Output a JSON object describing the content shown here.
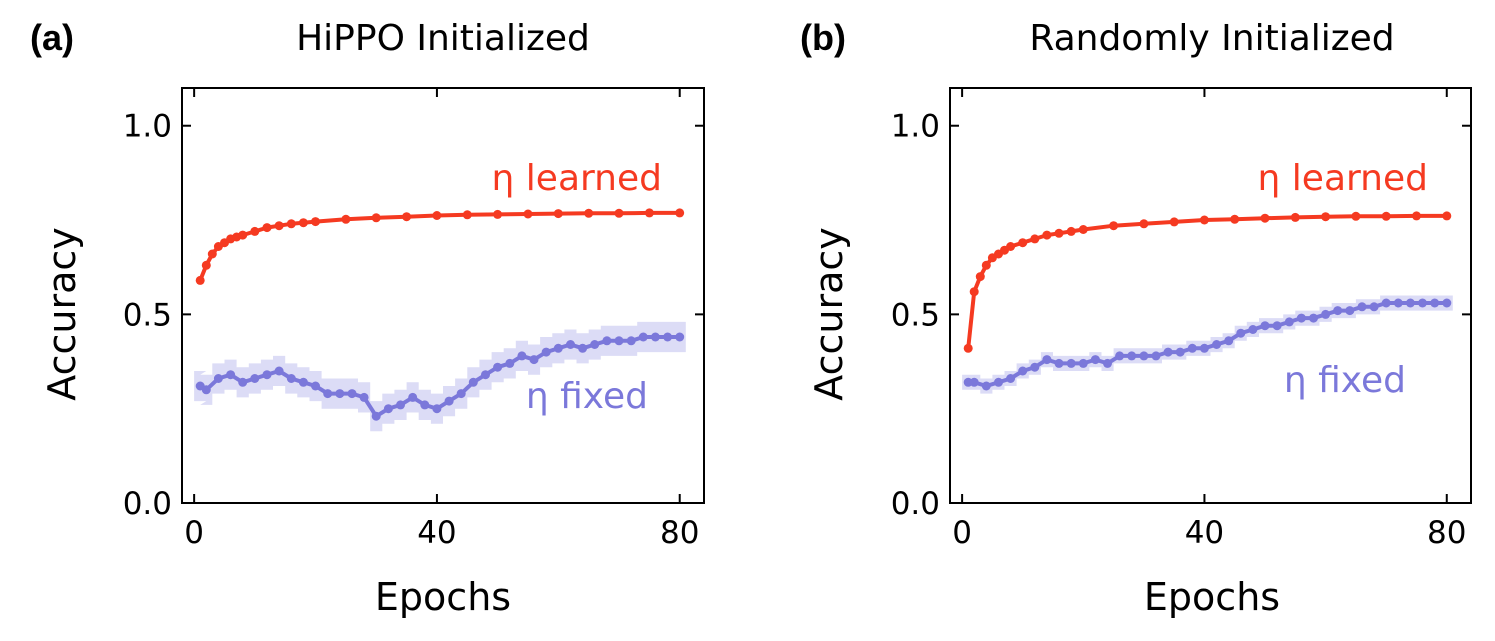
{
  "colors": {
    "learned": "#f53a21",
    "fixed": "#7b78da",
    "fixed_band": "#dcdcf6"
  },
  "chart_data": [
    {
      "type": "line",
      "panel_label": "(a)",
      "title": "HiPPO Initialized",
      "xlabel": "Epochs",
      "ylabel": "Accuracy",
      "xlim": [
        -2,
        84
      ],
      "ylim": [
        0,
        1.1
      ],
      "xticks": [
        "0",
        "40",
        "80"
      ],
      "yticks": [
        "0.0",
        "0.5",
        "1.0"
      ],
      "series": [
        {
          "name": "η learned",
          "x": [
            1,
            2,
            3,
            4,
            5,
            6,
            7,
            8,
            10,
            12,
            14,
            16,
            18,
            20,
            25,
            30,
            35,
            40,
            45,
            50,
            55,
            60,
            65,
            70,
            75,
            80
          ],
          "values": [
            0.59,
            0.63,
            0.66,
            0.68,
            0.69,
            0.7,
            0.705,
            0.71,
            0.72,
            0.73,
            0.735,
            0.74,
            0.743,
            0.746,
            0.752,
            0.756,
            0.759,
            0.762,
            0.764,
            0.765,
            0.766,
            0.767,
            0.768,
            0.768,
            0.769,
            0.769
          ]
        },
        {
          "name": "η fixed",
          "x": [
            1,
            2,
            4,
            6,
            8,
            10,
            12,
            14,
            16,
            18,
            20,
            22,
            24,
            26,
            28,
            30,
            32,
            34,
            36,
            38,
            40,
            42,
            44,
            46,
            48,
            50,
            52,
            54,
            56,
            58,
            60,
            62,
            64,
            66,
            68,
            70,
            72,
            74,
            76,
            78,
            80
          ],
          "values": [
            0.31,
            0.3,
            0.33,
            0.34,
            0.32,
            0.33,
            0.34,
            0.35,
            0.33,
            0.32,
            0.31,
            0.29,
            0.29,
            0.29,
            0.28,
            0.23,
            0.25,
            0.26,
            0.28,
            0.26,
            0.25,
            0.27,
            0.29,
            0.32,
            0.34,
            0.36,
            0.37,
            0.39,
            0.38,
            0.4,
            0.41,
            0.42,
            0.41,
            0.42,
            0.43,
            0.43,
            0.43,
            0.44,
            0.44,
            0.44,
            0.44
          ],
          "band": 0.04
        }
      ]
    },
    {
      "type": "line",
      "panel_label": "(b)",
      "title": "Randomly Initialized",
      "xlabel": "Epochs",
      "ylabel": "Accuracy",
      "xlim": [
        -2,
        84
      ],
      "ylim": [
        0,
        1.1
      ],
      "xticks": [
        "0",
        "40",
        "80"
      ],
      "yticks": [
        "0.0",
        "0.5",
        "1.0"
      ],
      "series": [
        {
          "name": "η learned",
          "x": [
            1,
            2,
            3,
            4,
            5,
            6,
            7,
            8,
            10,
            12,
            14,
            16,
            18,
            20,
            25,
            30,
            35,
            40,
            45,
            50,
            55,
            60,
            65,
            70,
            75,
            80
          ],
          "values": [
            0.41,
            0.56,
            0.6,
            0.63,
            0.65,
            0.66,
            0.67,
            0.68,
            0.69,
            0.7,
            0.71,
            0.715,
            0.72,
            0.725,
            0.735,
            0.74,
            0.745,
            0.75,
            0.752,
            0.755,
            0.757,
            0.759,
            0.76,
            0.76,
            0.761,
            0.761
          ]
        },
        {
          "name": "η fixed",
          "x": [
            1,
            2,
            4,
            6,
            8,
            10,
            12,
            14,
            16,
            18,
            20,
            22,
            24,
            26,
            28,
            30,
            32,
            34,
            36,
            38,
            40,
            42,
            44,
            46,
            48,
            50,
            52,
            54,
            56,
            58,
            60,
            62,
            64,
            66,
            68,
            70,
            72,
            74,
            76,
            78,
            80
          ],
          "values": [
            0.32,
            0.32,
            0.31,
            0.32,
            0.33,
            0.35,
            0.36,
            0.38,
            0.37,
            0.37,
            0.37,
            0.38,
            0.37,
            0.39,
            0.39,
            0.39,
            0.39,
            0.4,
            0.4,
            0.41,
            0.41,
            0.42,
            0.43,
            0.45,
            0.46,
            0.47,
            0.47,
            0.48,
            0.49,
            0.49,
            0.5,
            0.51,
            0.51,
            0.52,
            0.52,
            0.53,
            0.53,
            0.53,
            0.53,
            0.53,
            0.53
          ],
          "band": 0.02
        }
      ]
    }
  ]
}
